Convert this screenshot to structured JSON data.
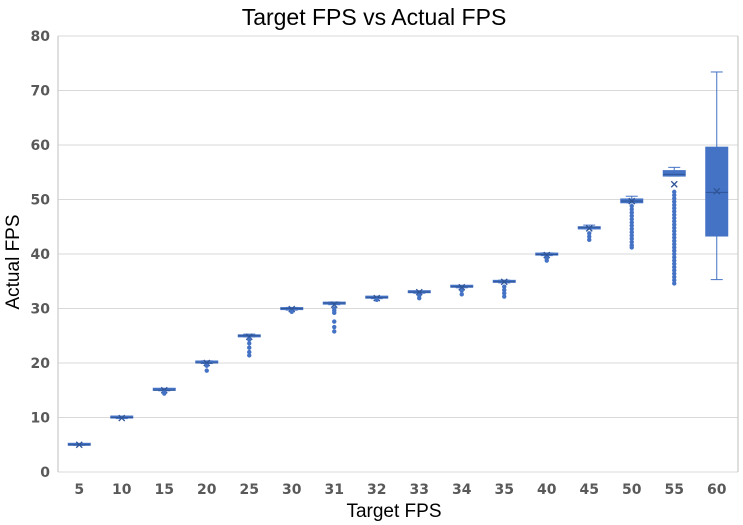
{
  "chart_data": {
    "type": "box",
    "title": "Target FPS vs Actual FPS",
    "xlabel": "Target FPS",
    "ylabel": "Actual FPS",
    "ylim": [
      0,
      80
    ],
    "yticks": [
      0,
      10,
      20,
      30,
      40,
      50,
      60,
      70,
      80
    ],
    "grid": true,
    "legend": "none",
    "color": "#4472c4",
    "categories": [
      "5",
      "10",
      "15",
      "20",
      "25",
      "30",
      "31",
      "32",
      "33",
      "34",
      "35",
      "40",
      "45",
      "50",
      "55",
      "60"
    ],
    "boxes": [
      {
        "min": 4.9,
        "q1": 4.9,
        "median": 5,
        "q3": 5.1,
        "max": 5.1,
        "mean": 5,
        "outliers": []
      },
      {
        "min": 9.8,
        "q1": 9.9,
        "median": 10,
        "q3": 10.1,
        "max": 10.1,
        "mean": 9.9,
        "outliers": []
      },
      {
        "min": 14.9,
        "q1": 15,
        "median": 15,
        "q3": 15.1,
        "max": 15.2,
        "mean": 15,
        "outliers": [
          14.6,
          14.4
        ]
      },
      {
        "min": 19.9,
        "q1": 20,
        "median": 20,
        "q3": 20.2,
        "max": 20.4,
        "mean": 20,
        "outliers": [
          19.5,
          18.6
        ]
      },
      {
        "min": 24.8,
        "q1": 24.8,
        "median": 25,
        "q3": 25.1,
        "max": 25.3,
        "mean": 24.8,
        "outliers": [
          24.3,
          23.6,
          22.8,
          22.0,
          21.4
        ]
      },
      {
        "min": 29.7,
        "q1": 29.8,
        "median": 30,
        "q3": 30.1,
        "max": 30.2,
        "mean": 29.9,
        "outliers": [
          29.4
        ]
      },
      {
        "min": 30.7,
        "q1": 30.8,
        "median": 31,
        "q3": 31.1,
        "max": 31.2,
        "mean": 30.7,
        "outliers": [
          30.0,
          29.6,
          29.2,
          27.6,
          26.6,
          25.8
        ]
      },
      {
        "min": 31.8,
        "q1": 31.9,
        "median": 32,
        "q3": 32.1,
        "max": 32.2,
        "mean": 31.9,
        "outliers": [
          31.6
        ]
      },
      {
        "min": 32.8,
        "q1": 32.9,
        "median": 33,
        "q3": 33.1,
        "max": 33.2,
        "mean": 33,
        "outliers": [
          32.4,
          31.9
        ]
      },
      {
        "min": 33.8,
        "q1": 33.9,
        "median": 34,
        "q3": 34.1,
        "max": 34.2,
        "mean": 33.9,
        "outliers": [
          33.3,
          32.6
        ]
      },
      {
        "min": 34.7,
        "q1": 34.8,
        "median": 34.9,
        "q3": 35.1,
        "max": 35.2,
        "mean": 34.9,
        "outliers": [
          34.0,
          33.4,
          32.8,
          32.2
        ]
      },
      {
        "min": 39.7,
        "q1": 39.8,
        "median": 39.9,
        "q3": 40.0,
        "max": 40.2,
        "mean": 39.8,
        "outliers": [
          39.2,
          38.8
        ]
      },
      {
        "min": 44.6,
        "q1": 44.6,
        "median": 44.9,
        "q3": 45.0,
        "max": 45.3,
        "mean": 44.7,
        "outliers": [
          43.8,
          43.2,
          42.6
        ]
      },
      {
        "min": 49.4,
        "q1": 49.4,
        "median": 49.7,
        "q3": 50.1,
        "max": 50.6,
        "mean": 49.7,
        "outliers": [
          48.8,
          48.2,
          47.6,
          47.0,
          46.4,
          45.8,
          45.2,
          44.6,
          44.0,
          43.4,
          42.8,
          42.2,
          41.6,
          41.2
        ]
      },
      {
        "min": 54.3,
        "q1": 54.3,
        "median": 54.6,
        "q3": 55.3,
        "max": 55.9,
        "mean": 52.8,
        "outliers": [
          51.4,
          50.8,
          50.2,
          49.6,
          49.0,
          48.4,
          47.8,
          47.2,
          46.6,
          46.0,
          45.4,
          44.8,
          44.2,
          43.6,
          43.0,
          42.4,
          41.8,
          41.2,
          40.6,
          40.0,
          39.4,
          38.8,
          38.2,
          37.6,
          37.0,
          36.4,
          35.8,
          35.2,
          34.6
        ]
      },
      {
        "min": 35.3,
        "q1": 43.3,
        "median": 51.3,
        "q3": 59.6,
        "max": 73.4,
        "mean": 51.5,
        "outliers": []
      }
    ]
  }
}
